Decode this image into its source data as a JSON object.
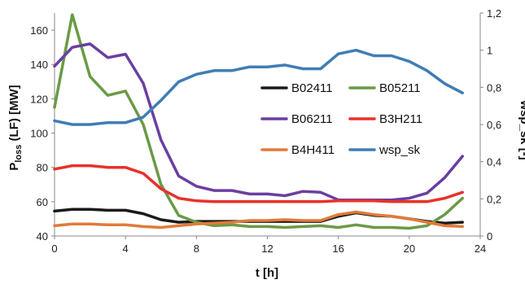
{
  "chart_data": {
    "type": "line",
    "xlabel": "t [h]",
    "ylabel_left": {
      "main": "P",
      "sub": "loss",
      "rest": " (LF) [MW]"
    },
    "ylabel_right": "wsp_sk [-]",
    "xlim": [
      0,
      24
    ],
    "ylim_left": [
      40,
      170
    ],
    "ylim_right": [
      0,
      1.2
    ],
    "x_ticks": [
      "0",
      "4",
      "8",
      "12",
      "16",
      "20",
      "24"
    ],
    "y_left_ticks": [
      "40",
      "60",
      "80",
      "100",
      "120",
      "140",
      "160"
    ],
    "y_right_ticks": [
      "0",
      "0,2",
      "0,4",
      "0,6",
      "0,8",
      "1",
      "1,2"
    ],
    "grid": false,
    "legend_placement": "center-right",
    "x": [
      0,
      1,
      2,
      3,
      4,
      5,
      6,
      7,
      8,
      9,
      10,
      11,
      12,
      13,
      14,
      15,
      16,
      17,
      18,
      19,
      20,
      21,
      22,
      23
    ],
    "series": [
      {
        "name": "B02411",
        "axis": "left",
        "color": "#1a1a1a",
        "values": [
          54.5,
          55.5,
          55.5,
          55,
          55,
          53,
          49.5,
          48,
          48.5,
          48.5,
          48.5,
          48.5,
          48.5,
          48.5,
          48.5,
          48.5,
          51.5,
          53.5,
          52,
          51.5,
          50,
          48.5,
          47.5,
          48
        ]
      },
      {
        "name": "B05211",
        "axis": "left",
        "color": "#6a9a46",
        "values": [
          115,
          169,
          133,
          122,
          124.5,
          105,
          70,
          52,
          48,
          46,
          46.5,
          45.5,
          45.5,
          45,
          45.5,
          46,
          45,
          46.5,
          45,
          45,
          44.5,
          46,
          52.5,
          62
        ]
      },
      {
        "name": "B06211",
        "axis": "left",
        "color": "#6a3fa0",
        "values": [
          139,
          150,
          152,
          144,
          146,
          129,
          96,
          75,
          69,
          66.5,
          66.5,
          64.5,
          64.5,
          63.5,
          66,
          65.5,
          61,
          61,
          61,
          61,
          62,
          65,
          74,
          86.5
        ]
      },
      {
        "name": "B3H211",
        "axis": "left",
        "color": "#e8312a",
        "values": [
          79,
          81,
          81,
          80,
          80,
          76.5,
          67.5,
          62,
          60.5,
          60,
          60,
          60,
          60,
          60,
          60,
          60,
          60.5,
          60.5,
          60.5,
          60,
          60,
          60,
          62,
          65.5
        ]
      },
      {
        "name": "B4H411",
        "axis": "left",
        "color": "#e07b39",
        "values": [
          46,
          47,
          47,
          46.5,
          46.5,
          45.5,
          45,
          46,
          47,
          47.5,
          48,
          49,
          49,
          49.5,
          49,
          49,
          52.5,
          54,
          52.5,
          51.5,
          50,
          48,
          46,
          45.5
        ]
      },
      {
        "name": "wsp_sk",
        "axis": "right",
        "color": "#3f7db5",
        "values": [
          0.62,
          0.6,
          0.6,
          0.61,
          0.61,
          0.64,
          0.73,
          0.83,
          0.87,
          0.89,
          0.89,
          0.91,
          0.91,
          0.92,
          0.9,
          0.9,
          0.98,
          1.0,
          0.97,
          0.97,
          0.94,
          0.89,
          0.82,
          0.77
        ]
      }
    ]
  }
}
